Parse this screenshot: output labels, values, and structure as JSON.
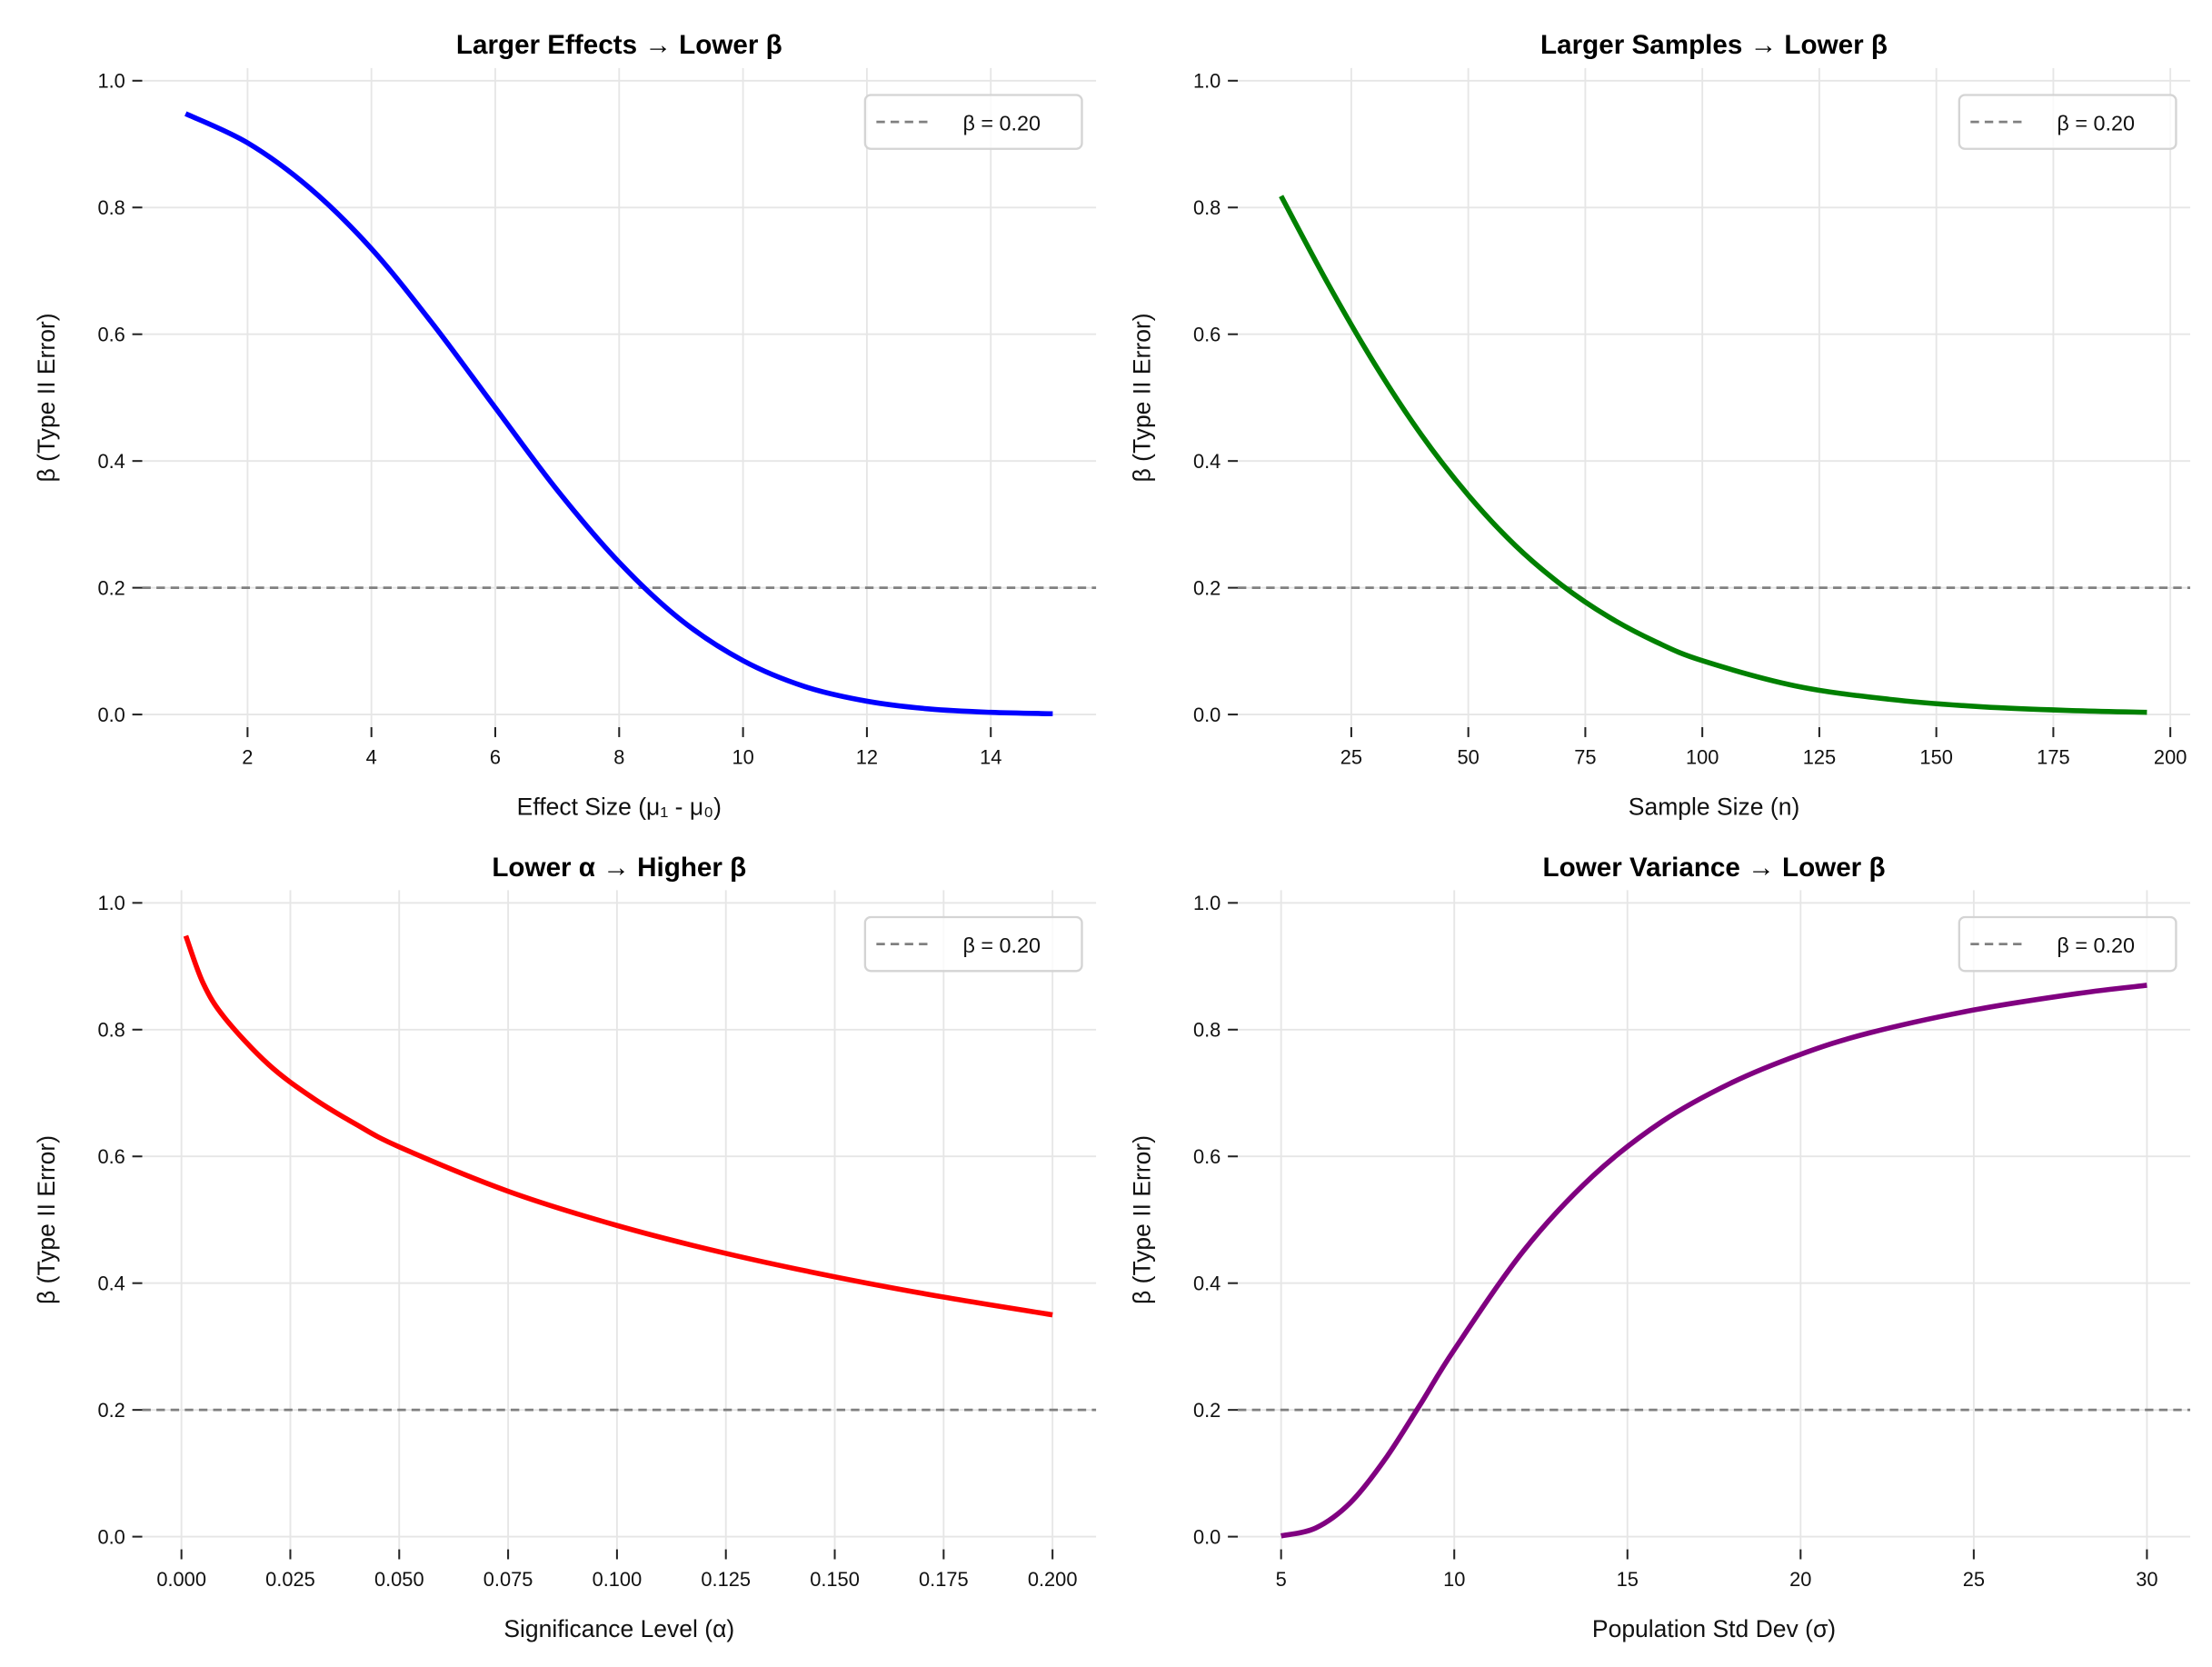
{
  "chart_data": [
    {
      "type": "line",
      "title": "Larger Effects → Lower β",
      "xlabel": "Effect Size (μ₁ - μ₀)",
      "ylabel": "β (Type II Error)",
      "xlim": [
        0.3,
        15.7
      ],
      "ylim": [
        -0.02,
        1.02
      ],
      "xticks": [
        2,
        4,
        6,
        8,
        10,
        12,
        14
      ],
      "xtick_labels": [
        "2",
        "4",
        "6",
        "8",
        "10",
        "12",
        "14"
      ],
      "yticks": [
        0,
        0.2,
        0.4,
        0.6,
        0.8,
        1.0
      ],
      "ytick_labels": [
        "0.0",
        "0.2",
        "0.4",
        "0.6",
        "0.8",
        "1.0"
      ],
      "grid": true,
      "legend_position": "upper-right",
      "series": [
        {
          "color": "#0000ff",
          "x": [
            1,
            2,
            3,
            4,
            5,
            6,
            7,
            8,
            9,
            10,
            11,
            12,
            13,
            14,
            15
          ],
          "y": [
            0.948,
            0.902,
            0.831,
            0.735,
            0.615,
            0.484,
            0.354,
            0.24,
            0.149,
            0.085,
            0.044,
            0.021,
            0.0088,
            0.0034,
            0.0012
          ]
        }
      ],
      "hline": {
        "y": 0.2,
        "label": "β = 0.20",
        "color": "#808080"
      }
    },
    {
      "type": "line",
      "title": "Larger Samples → Lower β",
      "xlabel": "Sample Size (n)",
      "ylabel": "β (Type II Error)",
      "xlim": [
        0.75,
        204.25
      ],
      "ylim": [
        -0.02,
        1.02
      ],
      "xticks": [
        25,
        50,
        75,
        100,
        125,
        150,
        175,
        200
      ],
      "xtick_labels": [
        "25",
        "50",
        "75",
        "100",
        "125",
        "150",
        "175",
        "200"
      ],
      "yticks": [
        0,
        0.2,
        0.4,
        0.6,
        0.8,
        1.0
      ],
      "ytick_labels": [
        "0.0",
        "0.2",
        "0.4",
        "0.6",
        "0.8",
        "1.0"
      ],
      "grid": true,
      "legend_position": "upper-right",
      "series": [
        {
          "color": "#008000",
          "x": [
            10,
            20,
            30,
            40,
            50,
            60,
            70,
            80,
            90,
            100,
            120,
            140,
            160,
            180,
            195
          ],
          "y": [
            0.818,
            0.68,
            0.553,
            0.441,
            0.346,
            0.267,
            0.204,
            0.154,
            0.115,
            0.085,
            0.045,
            0.024,
            0.012,
            0.006,
            0.0035
          ]
        }
      ],
      "hline": {
        "y": 0.2,
        "label": "β = 0.20",
        "color": "#808080"
      }
    },
    {
      "type": "line",
      "title": "Lower α → Higher β",
      "xlabel": "Significance Level (α)",
      "ylabel": "β (Type II Error)",
      "xlim": [
        -0.009,
        0.21
      ],
      "ylim": [
        -0.02,
        1.02
      ],
      "xticks": [
        0,
        0.025,
        0.05,
        0.075,
        0.1,
        0.125,
        0.15,
        0.175,
        0.2
      ],
      "xtick_labels": [
        "0.000",
        "0.025",
        "0.050",
        "0.075",
        "0.100",
        "0.125",
        "0.150",
        "0.175",
        "0.200"
      ],
      "yticks": [
        0,
        0.2,
        0.4,
        0.6,
        0.8,
        1.0
      ],
      "ytick_labels": [
        "0.0",
        "0.2",
        "0.4",
        "0.6",
        "0.8",
        "1.0"
      ],
      "grid": true,
      "legend_position": "upper-right",
      "series": [
        {
          "color": "#ff0000",
          "x": [
            0.001,
            0.005,
            0.01,
            0.02,
            0.03,
            0.04,
            0.05,
            0.075,
            0.1,
            0.125,
            0.15,
            0.175,
            0.2
          ],
          "y": [
            0.948,
            0.873,
            0.818,
            0.745,
            0.693,
            0.651,
            0.615,
            0.545,
            0.491,
            0.447,
            0.41,
            0.378,
            0.35
          ]
        }
      ],
      "hline": {
        "y": 0.2,
        "label": "β = 0.20",
        "color": "#808080"
      }
    },
    {
      "type": "line",
      "title": "Lower Variance → Lower β",
      "xlabel": "Population Std Dev (σ)",
      "ylabel": "β (Type II Error)",
      "xlim": [
        3.75,
        31.25
      ],
      "ylim": [
        -0.02,
        1.02
      ],
      "xticks": [
        5,
        10,
        15,
        20,
        25,
        30
      ],
      "xtick_labels": [
        "5",
        "10",
        "15",
        "20",
        "25",
        "30"
      ],
      "yticks": [
        0,
        0.2,
        0.4,
        0.6,
        0.8,
        1.0
      ],
      "ytick_labels": [
        "0.0",
        "0.2",
        "0.4",
        "0.6",
        "0.8",
        "1.0"
      ],
      "grid": true,
      "legend_position": "upper-right",
      "series": [
        {
          "color": "#800080",
          "x": [
            5,
            6,
            7,
            8,
            9,
            10,
            12,
            14,
            16,
            18,
            20,
            22,
            25,
            28,
            30
          ],
          "y": [
            0.0012,
            0.0137,
            0.0536,
            0.122,
            0.207,
            0.295,
            0.451,
            0.569,
            0.655,
            0.716,
            0.761,
            0.795,
            0.831,
            0.857,
            0.87
          ]
        }
      ],
      "hline": {
        "y": 0.2,
        "label": "β = 0.20",
        "color": "#808080"
      }
    }
  ]
}
